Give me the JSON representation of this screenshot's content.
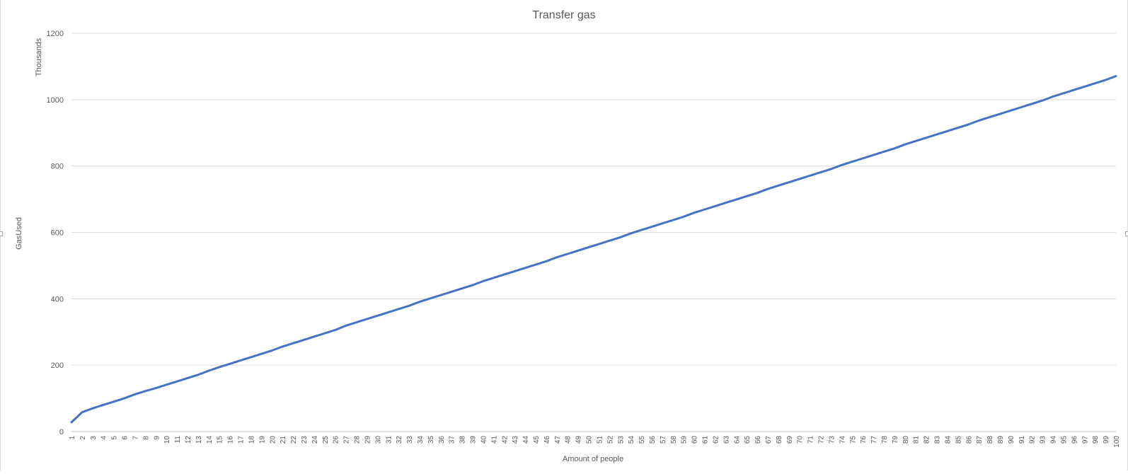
{
  "chart_data": {
    "type": "line",
    "title": "Transfer gas",
    "xlabel": "Amount of people",
    "ylabel": "GasUsed",
    "y_display_unit": "Thousands",
    "ylim": [
      0,
      1200
    ],
    "y_ticks": [
      0,
      200,
      400,
      600,
      800,
      1000,
      1200
    ],
    "grid": true,
    "legend": "none",
    "categories": [
      1,
      2,
      3,
      4,
      5,
      6,
      7,
      8,
      9,
      10,
      11,
      12,
      13,
      14,
      15,
      16,
      17,
      18,
      19,
      20,
      21,
      22,
      23,
      24,
      25,
      26,
      27,
      28,
      29,
      30,
      31,
      32,
      33,
      34,
      35,
      36,
      37,
      38,
      39,
      40,
      41,
      42,
      43,
      44,
      45,
      46,
      47,
      48,
      49,
      50,
      51,
      52,
      53,
      54,
      55,
      56,
      57,
      58,
      59,
      60,
      61,
      62,
      63,
      64,
      65,
      66,
      67,
      68,
      69,
      70,
      71,
      72,
      73,
      74,
      75,
      76,
      77,
      78,
      79,
      80,
      81,
      82,
      83,
      84,
      85,
      86,
      87,
      88,
      89,
      90,
      91,
      92,
      93,
      94,
      95,
      96,
      97,
      98,
      99,
      100
    ],
    "series": [
      {
        "color": "#4472C4",
        "values": [
          28,
          58,
          70,
          80,
          90,
          100,
          112,
          122,
          131,
          141,
          151,
          161,
          171,
          183,
          194,
          204,
          214,
          224,
          234,
          244,
          256,
          266,
          276,
          286,
          296,
          306,
          319,
          329,
          339,
          349,
          359,
          369,
          379,
          391,
          401,
          411,
          421,
          431,
          441,
          453,
          463,
          473,
          483,
          493,
          503,
          513,
          525,
          535,
          545,
          555,
          565,
          575,
          585,
          597,
          607,
          617,
          627,
          637,
          647,
          659,
          669,
          679,
          689,
          699,
          709,
          719,
          731,
          741,
          751,
          761,
          771,
          781,
          791,
          803,
          813,
          823,
          833,
          843,
          853,
          865,
          875,
          885,
          895,
          905,
          915,
          925,
          937,
          947,
          957,
          967,
          977,
          987,
          997,
          1009,
          1019,
          1029,
          1039,
          1049,
          1059,
          1071
        ]
      }
    ]
  }
}
